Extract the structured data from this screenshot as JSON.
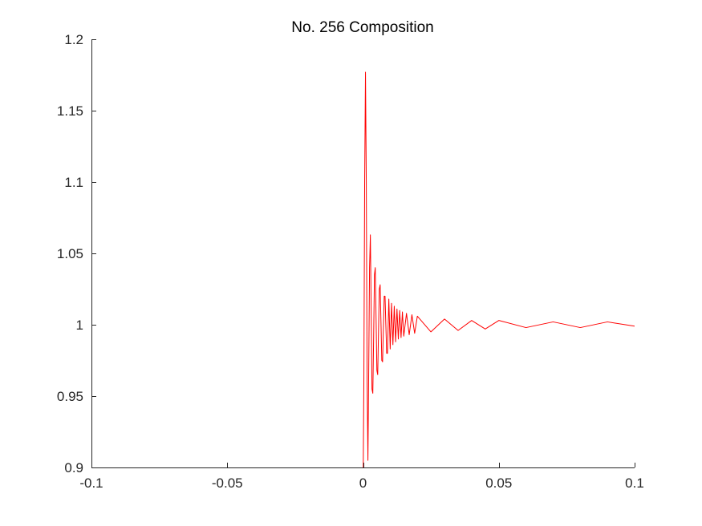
{
  "chart_data": {
    "type": "line",
    "title": "No. 256 Composition",
    "xlabel": "",
    "ylabel": "",
    "xlim": [
      -0.1,
      0.1
    ],
    "ylim": [
      0.9,
      1.2
    ],
    "x_ticks": [
      -0.1,
      -0.05,
      0,
      0.05,
      0.1
    ],
    "x_tick_labels": [
      "-0.1",
      "-0.05",
      "0",
      "0.05",
      "0.1"
    ],
    "y_ticks": [
      0.9,
      0.95,
      1.0,
      1.05,
      1.1,
      1.15,
      1.2
    ],
    "y_tick_labels": [
      "0.9",
      "0.95",
      "1",
      "1.05",
      "1.1",
      "1.15",
      "1.2"
    ],
    "grid": false,
    "legend": "none",
    "series": [
      {
        "color": "#ff0000",
        "x": [
          0,
          0.0003,
          0.0006,
          0.0009,
          0.0012,
          0.0015,
          0.0018,
          0.0021,
          0.0024,
          0.0027,
          0.003,
          0.0033,
          0.0036,
          0.0039,
          0.0042,
          0.0045,
          0.0048,
          0.0051,
          0.0054,
          0.0057,
          0.006,
          0.0063,
          0.0066,
          0.0069,
          0.0072,
          0.0075,
          0.0078,
          0.0081,
          0.0084,
          0.0087,
          0.009,
          0.0095,
          0.01,
          0.0105,
          0.011,
          0.0115,
          0.012,
          0.0125,
          0.013,
          0.0135,
          0.014,
          0.0145,
          0.015,
          0.016,
          0.017,
          0.018,
          0.019,
          0.02,
          0.025,
          0.03,
          0.035,
          0.04,
          0.045,
          0.05,
          0.06,
          0.07,
          0.08,
          0.09,
          0.1
        ],
        "y": [
          0.88,
          0.96,
          1.1,
          1.177,
          1.1,
          0.96,
          0.905,
          0.97,
          1.04,
          1.063,
          1.01,
          0.955,
          0.952,
          0.99,
          1.035,
          1.04,
          1.005,
          0.968,
          0.965,
          0.995,
          1.025,
          1.028,
          1.002,
          0.975,
          0.974,
          0.998,
          1.02,
          1.02,
          1.0,
          0.98,
          0.98,
          1.018,
          0.983,
          1.015,
          0.986,
          1.013,
          0.988,
          1.011,
          0.99,
          1.01,
          0.991,
          1.009,
          0.992,
          1.008,
          0.993,
          1.007,
          0.994,
          1.006,
          0.995,
          1.004,
          0.996,
          1.003,
          0.997,
          1.003,
          0.998,
          1.002,
          0.998,
          1.002,
          0.999
        ]
      }
    ]
  }
}
